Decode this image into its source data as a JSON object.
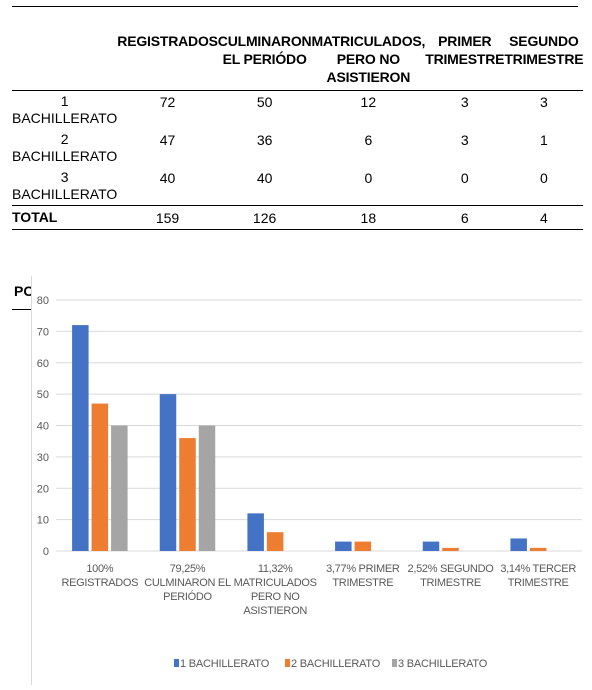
{
  "table": {
    "headers": [
      "",
      [
        "REGISTRADOS"
      ],
      [
        "CULMINARON",
        "EL PERIÓDO"
      ],
      [
        "MATRICULADOS,",
        "PERO NO",
        "ASISTIERON"
      ],
      [
        "PRIMER",
        "TRIMESTRE"
      ],
      [
        "SEGUNDO",
        "TRIMESTRE"
      ]
    ],
    "rows": [
      {
        "label": [
          "1",
          "BACHILLERATO"
        ],
        "values": [
          "72",
          "50",
          "12",
          "3",
          "3"
        ]
      },
      {
        "label": [
          "2",
          "BACHILLERATO"
        ],
        "values": [
          "47",
          "36",
          "6",
          "3",
          "1"
        ]
      },
      {
        "label": [
          "3",
          "BACHILLERATO"
        ],
        "values": [
          "40",
          "40",
          "0",
          "0",
          "0"
        ]
      }
    ],
    "total": {
      "label": "TOTAL",
      "values": [
        "159",
        "126",
        "18",
        "6",
        "4"
      ]
    }
  },
  "partial_text": "PC",
  "chart_data": {
    "type": "bar",
    "categories": [
      [
        "100%",
        "REGISTRADOS"
      ],
      [
        "79,25%",
        "CULMINARON EL",
        "PERIÓDO"
      ],
      [
        "11,32%",
        "MATRICULADOS",
        "PERO NO",
        "ASISTIERON"
      ],
      [
        "3,77% PRIMER",
        "TRIMESTRE"
      ],
      [
        "2,52% SEGUNDO",
        "TRIMESTRE"
      ],
      [
        "3,14% TERCER",
        "TRIMESTRE"
      ]
    ],
    "series": [
      {
        "name": "1 BACHILLERATO",
        "color": "#4472c4",
        "values": [
          72,
          50,
          12,
          3,
          3,
          4
        ]
      },
      {
        "name": "2 BACHILLERATO",
        "color": "#ed7d31",
        "values": [
          47,
          36,
          6,
          3,
          1,
          1
        ]
      },
      {
        "name": "3 BACHILLERATO",
        "color": "#a5a5a5",
        "values": [
          40,
          40,
          0,
          0,
          0,
          0
        ]
      }
    ],
    "ylim": [
      0,
      80
    ],
    "yticks": [
      0,
      10,
      20,
      30,
      40,
      50,
      60,
      70,
      80
    ],
    "grid": true,
    "legend_position": "bottom"
  }
}
